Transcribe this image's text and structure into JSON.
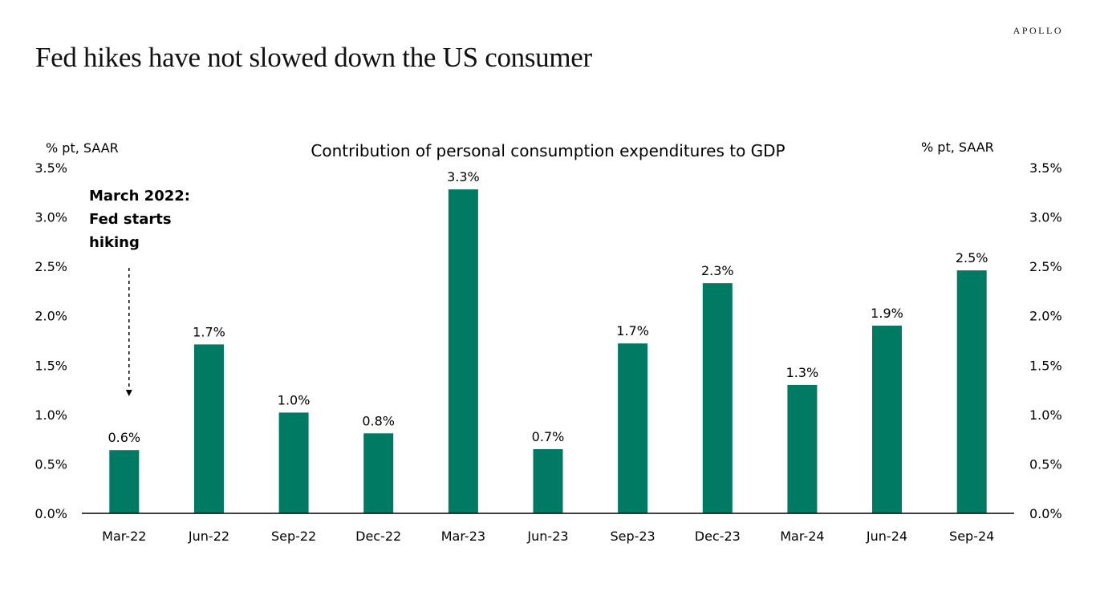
{
  "header": {
    "brand": "APOLLO",
    "title": "Fed hikes have not slowed down the US consumer"
  },
  "colors": {
    "bar": "#007A63",
    "text": "#000000",
    "axis": "#000000"
  },
  "chart_data": {
    "type": "bar",
    "title": "Contribution of personal consumption expenditures to GDP",
    "ylabel_left": "% pt, SAAR",
    "ylabel_right": "% pt, SAAR",
    "categories": [
      "Mar-22",
      "Jun-22",
      "Sep-22",
      "Dec-22",
      "Mar-23",
      "Jun-23",
      "Sep-23",
      "Dec-23",
      "Mar-24",
      "Jun-24",
      "Sep-24"
    ],
    "values": [
      0.64,
      1.71,
      1.02,
      0.81,
      3.28,
      0.65,
      1.72,
      2.33,
      1.3,
      1.9,
      2.46
    ],
    "data_labels": [
      "0.6%",
      "1.7%",
      "1.0%",
      "0.8%",
      "3.3%",
      "0.7%",
      "1.7%",
      "2.3%",
      "1.3%",
      "1.9%",
      "2.5%"
    ],
    "y_ticks": [
      0,
      0.5,
      1.0,
      1.5,
      2.0,
      2.5,
      3.0,
      3.5
    ],
    "y_tick_labels": [
      "0.0%",
      "0.5%",
      "1.0%",
      "1.5%",
      "2.0%",
      "2.5%",
      "3.0%",
      "3.5%"
    ],
    "ylim": [
      0,
      3.5
    ],
    "grid": false,
    "legend": "none",
    "annotation": {
      "lines": [
        "March 2022:",
        "Fed starts",
        "hiking"
      ],
      "points_to": "Mar-22"
    }
  }
}
